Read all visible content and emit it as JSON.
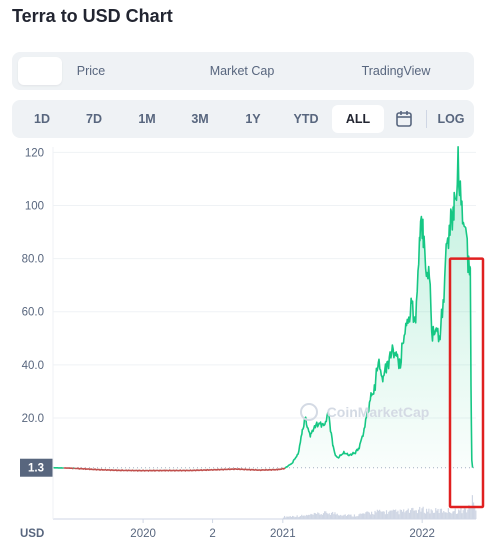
{
  "page": {
    "title": "Terra to USD Chart"
  },
  "view_tabs": [
    {
      "label": "",
      "active": true
    },
    {
      "label": "Price",
      "active": false
    },
    {
      "label": "Market Cap",
      "active": false
    },
    {
      "label": "TradingView",
      "active": false
    }
  ],
  "range_tabs": [
    {
      "label": "1D",
      "active": false
    },
    {
      "label": "7D",
      "active": false
    },
    {
      "label": "1M",
      "active": false
    },
    {
      "label": "3M",
      "active": false
    },
    {
      "label": "1Y",
      "active": false
    },
    {
      "label": "YTD",
      "active": false
    },
    {
      "label": "ALL",
      "active": true
    }
  ],
  "log_label": "LOG",
  "watermark": "CoinMarketCap",
  "colors": {
    "up": "#16c784",
    "down": "#c0504d",
    "highlight": "#e02020",
    "volume": "#cfd6e4"
  },
  "chart_data": {
    "type": "line",
    "ylabel": "USD",
    "ylim": [
      -18,
      122
    ],
    "yticks": [
      "20.0",
      "40.0",
      "60.0",
      "80.0",
      "100",
      "120"
    ],
    "ytick_values": [
      20,
      40,
      60,
      80,
      100,
      120
    ],
    "xticks": [
      "2020",
      "2",
      "2021",
      "2022"
    ],
    "xtick_positions": [
      "2020-01-01",
      "2020-07-01",
      "2021-01-01",
      "2022-01-01"
    ],
    "xlim": [
      "2019-05-10",
      "2022-05-22"
    ],
    "current_price_label": "1.3",
    "current_price": 1.3,
    "series": [
      {
        "x": [
          "2019-05-10",
          "2019-07-01",
          "2019-09-01",
          "2019-11-01",
          "2020-01-01",
          "2020-03-01",
          "2020-05-01",
          "2020-07-01",
          "2020-09-01",
          "2020-11-01",
          "2020-12-20",
          "2021-01-05",
          "2021-01-25",
          "2021-02-10",
          "2021-02-20",
          "2021-03-01",
          "2021-03-14",
          "2021-03-25",
          "2021-04-10",
          "2021-04-20",
          "2021-05-01",
          "2021-05-12",
          "2021-05-19",
          "2021-05-25",
          "2021-06-10",
          "2021-06-25",
          "2021-07-10",
          "2021-07-20",
          "2021-08-01",
          "2021-08-10",
          "2021-08-20",
          "2021-08-31",
          "2021-09-07",
          "2021-09-20",
          "2021-10-01",
          "2021-10-15",
          "2021-10-25",
          "2021-11-05",
          "2021-11-15",
          "2021-11-25",
          "2021-12-05",
          "2021-12-15",
          "2021-12-25",
          "2022-01-03",
          "2022-01-10",
          "2022-01-20",
          "2022-01-28",
          "2022-02-05",
          "2022-02-15",
          "2022-02-25",
          "2022-03-05",
          "2022-03-15",
          "2022-03-25",
          "2022-04-01",
          "2022-04-05",
          "2022-04-15",
          "2022-04-25",
          "2022-05-01",
          "2022-05-05",
          "2022-05-07",
          "2022-05-09",
          "2022-05-11",
          "2022-05-13"
        ],
        "y": [
          1.3,
          1.1,
          0.6,
          0.3,
          0.2,
          0.25,
          0.25,
          0.5,
          0.8,
          0.4,
          0.6,
          1.0,
          3.0,
          6.5,
          14.0,
          20.0,
          13.0,
          17.0,
          18.0,
          17.0,
          22.0,
          10.0,
          6.0,
          5.0,
          7.0,
          6.0,
          7.0,
          9.0,
          15.0,
          21.0,
          28.0,
          31.0,
          42.0,
          35.0,
          40.0,
          45.0,
          44.0,
          40.0,
          53.0,
          56.0,
          62.0,
          55.0,
          88.0,
          95.0,
          76.0,
          73.0,
          50.0,
          54.0,
          50.0,
          62.0,
          84.0,
          92.0,
          100.0,
          103.0,
          116.0,
          96.0,
          92.0,
          80.0,
          78.0,
          75.0,
          30.0,
          4.0,
          1.3
        ]
      }
    ],
    "volume": {
      "x": [
        "2021-01-01",
        "2021-03-01",
        "2021-05-01",
        "2021-07-01",
        "2021-09-01",
        "2021-11-01",
        "2022-01-01",
        "2022-02-01",
        "2022-03-01",
        "2022-04-01",
        "2022-05-01",
        "2022-05-08",
        "2022-05-10",
        "2022-05-12",
        "2022-05-14",
        "2022-05-20"
      ],
      "y": [
        0.08,
        0.12,
        0.22,
        0.12,
        0.25,
        0.25,
        0.32,
        0.28,
        0.3,
        0.28,
        0.35,
        0.55,
        0.75,
        1.0,
        0.5,
        0.3
      ]
    }
  }
}
